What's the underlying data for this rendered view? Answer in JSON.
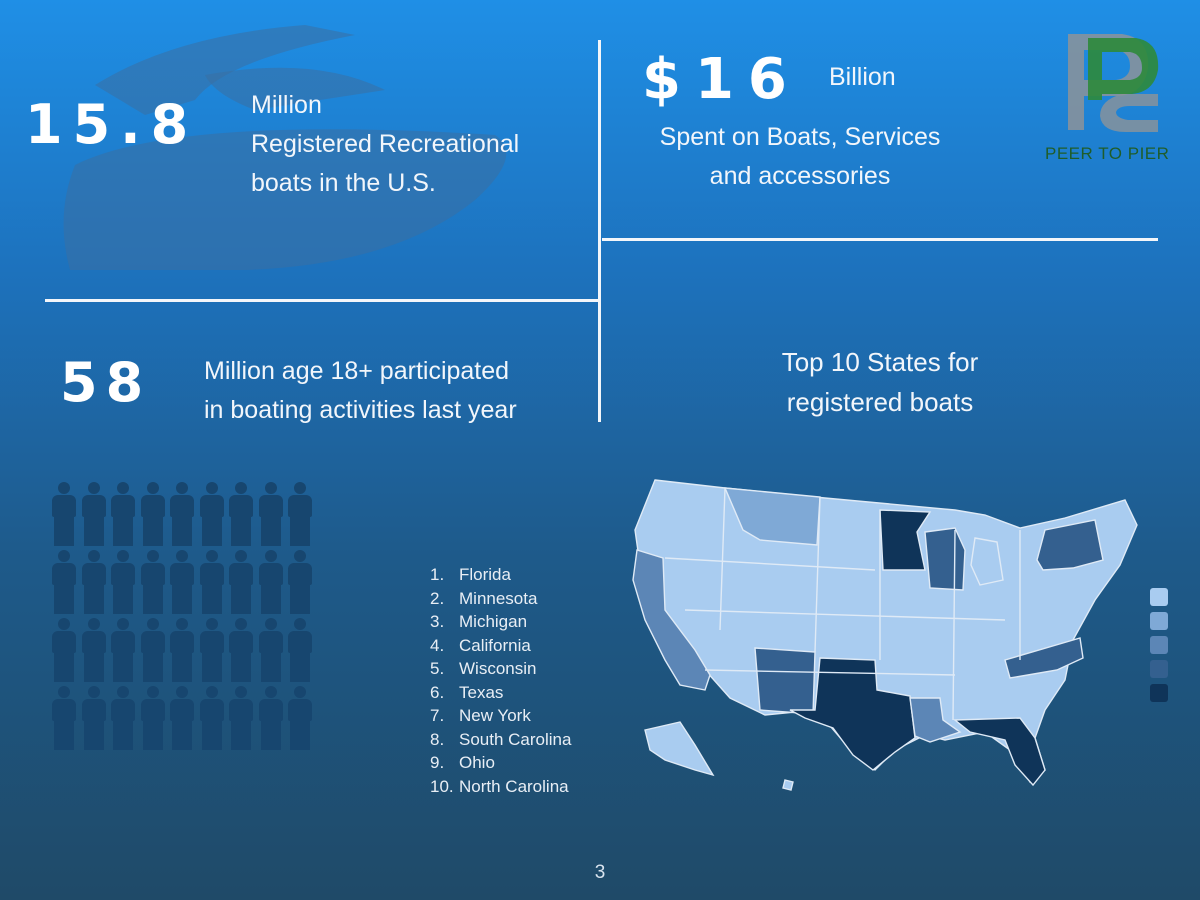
{
  "stats": {
    "registered": {
      "number": "15.8",
      "line1": "Million",
      "line2": "Registered Recreational",
      "line3": "boats in the U.S."
    },
    "spent": {
      "number": "$16",
      "unit": "Billion",
      "line1": "Spent on Boats, Services",
      "line2": "and accessories"
    },
    "participants": {
      "number": "58",
      "line1": "Million age 18+ participated",
      "line2": "in boating activities last year"
    }
  },
  "logo": {
    "text": "PEER TO PIER",
    "colors": [
      "#2e8a3b",
      "#8d9399"
    ]
  },
  "map_section": {
    "title_line1": "Top 10 States for",
    "title_line2": "registered boats"
  },
  "top_states": [
    {
      "rank": "1.",
      "name": "Florida"
    },
    {
      "rank": "2.",
      "name": "Minnesota"
    },
    {
      "rank": "3.",
      "name": "Michigan"
    },
    {
      "rank": "4.",
      "name": "California"
    },
    {
      "rank": "5.",
      "name": "Wisconsin"
    },
    {
      "rank": "6.",
      "name": "Texas"
    },
    {
      "rank": "7.",
      "name": "New York"
    },
    {
      "rank": "8.",
      "name": "South Carolina"
    },
    {
      "rank": "9.",
      "name": "Ohio"
    },
    {
      "rank": "10.",
      "name": "North Carolina"
    }
  ],
  "legend_colors": [
    "#a9ccf0",
    "#7fa9d6",
    "#5c86b6",
    "#34608f",
    "#0f3459"
  ],
  "people_grid": {
    "rows": 4,
    "columns": 9,
    "icon": "person-icon",
    "color": "#17466f"
  },
  "page_number": "3"
}
